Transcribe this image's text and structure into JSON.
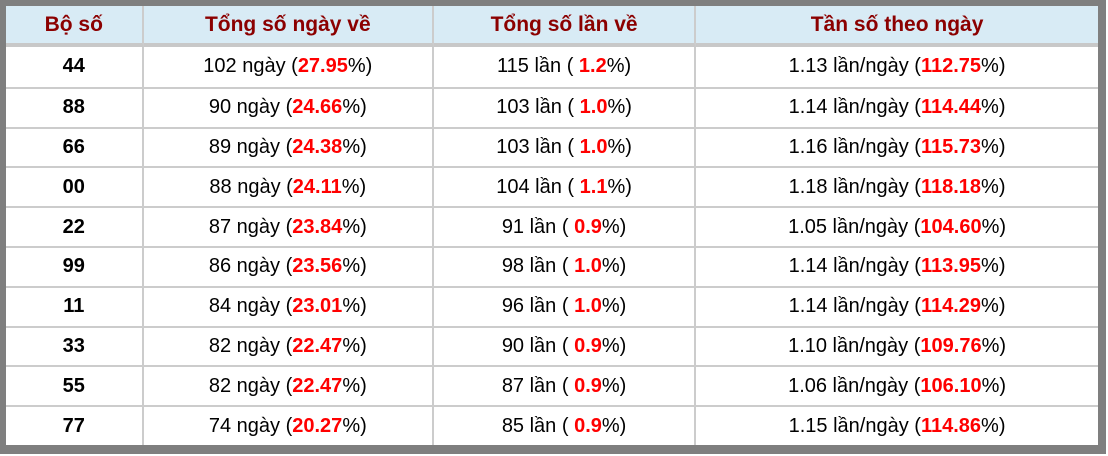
{
  "theme": {
    "header_background": "#d8ebf5",
    "header_text_color": "#8b0000",
    "highlight_color": "#ff0000",
    "body_text_color": "#000000",
    "outer_border_color": "#7f7f7f",
    "grid_line_color": "#cccccc",
    "header_underline_color": "#c8c8c8"
  },
  "table": {
    "columns": [
      {
        "label": "Bộ số"
      },
      {
        "label": "Tổng số ngày về"
      },
      {
        "label": "Tổng số lần về"
      },
      {
        "label": "Tần số theo ngày"
      }
    ],
    "rows": [
      {
        "pair": "44",
        "cells": [
          {
            "pre": "102 ngày (",
            "hot": "27.95",
            "post": "%)"
          },
          {
            "pre": "115 lần ( ",
            "hot": "1.2",
            "post": "%)"
          },
          {
            "pre": "1.13 lần/ngày (",
            "hot": "112.75",
            "post": "%)"
          }
        ]
      },
      {
        "pair": "88",
        "cells": [
          {
            "pre": "90 ngày (",
            "hot": "24.66",
            "post": "%)"
          },
          {
            "pre": "103 lần ( ",
            "hot": "1.0",
            "post": "%)"
          },
          {
            "pre": "1.14 lần/ngày (",
            "hot": "114.44",
            "post": "%)"
          }
        ]
      },
      {
        "pair": "66",
        "cells": [
          {
            "pre": "89 ngày (",
            "hot": "24.38",
            "post": "%)"
          },
          {
            "pre": "103 lần ( ",
            "hot": "1.0",
            "post": "%)"
          },
          {
            "pre": "1.16 lần/ngày (",
            "hot": "115.73",
            "post": "%)"
          }
        ]
      },
      {
        "pair": "00",
        "cells": [
          {
            "pre": "88 ngày (",
            "hot": "24.11",
            "post": "%)"
          },
          {
            "pre": "104 lần ( ",
            "hot": "1.1",
            "post": "%)"
          },
          {
            "pre": "1.18 lần/ngày (",
            "hot": "118.18",
            "post": "%)"
          }
        ]
      },
      {
        "pair": "22",
        "cells": [
          {
            "pre": "87 ngày (",
            "hot": "23.84",
            "post": "%)"
          },
          {
            "pre": "91 lần ( ",
            "hot": "0.9",
            "post": "%)"
          },
          {
            "pre": "1.05 lần/ngày (",
            "hot": "104.60",
            "post": "%)"
          }
        ]
      },
      {
        "pair": "99",
        "cells": [
          {
            "pre": "86 ngày (",
            "hot": "23.56",
            "post": "%)"
          },
          {
            "pre": "98 lần ( ",
            "hot": "1.0",
            "post": "%)"
          },
          {
            "pre": "1.14 lần/ngày (",
            "hot": "113.95",
            "post": "%)"
          }
        ]
      },
      {
        "pair": "11",
        "cells": [
          {
            "pre": "84 ngày (",
            "hot": "23.01",
            "post": "%)"
          },
          {
            "pre": "96 lần ( ",
            "hot": "1.0",
            "post": "%)"
          },
          {
            "pre": "1.14 lần/ngày (",
            "hot": "114.29",
            "post": "%)"
          }
        ]
      },
      {
        "pair": "33",
        "cells": [
          {
            "pre": "82 ngày (",
            "hot": "22.47",
            "post": "%)"
          },
          {
            "pre": "90 lần ( ",
            "hot": "0.9",
            "post": "%)"
          },
          {
            "pre": "1.10 lần/ngày (",
            "hot": "109.76",
            "post": "%)"
          }
        ]
      },
      {
        "pair": "55",
        "cells": [
          {
            "pre": "82 ngày (",
            "hot": "22.47",
            "post": "%)"
          },
          {
            "pre": "87 lần ( ",
            "hot": "0.9",
            "post": "%)"
          },
          {
            "pre": "1.06 lần/ngày (",
            "hot": "106.10",
            "post": "%)"
          }
        ]
      },
      {
        "pair": "77",
        "cells": [
          {
            "pre": "74 ngày (",
            "hot": "20.27",
            "post": "%)"
          },
          {
            "pre": "85 lần ( ",
            "hot": "0.9",
            "post": "%)"
          },
          {
            "pre": "1.15 lần/ngày (",
            "hot": "114.86",
            "post": "%)"
          }
        ]
      }
    ]
  }
}
